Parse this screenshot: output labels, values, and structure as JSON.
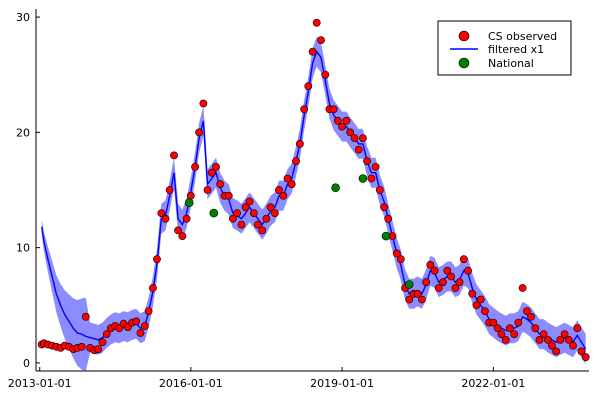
{
  "chart_data": {
    "type": "scatter",
    "title": "",
    "xlabel": "",
    "ylabel": "",
    "grid": false,
    "legend_position": "top-right",
    "xlim": [
      "2012-12-05",
      "2023-11-25"
    ],
    "ylim": [
      -0.7,
      30.7
    ],
    "x_ticks": [
      {
        "value": "2013-01-01",
        "label": "2013-01-01"
      },
      {
        "value": "2016-01-01",
        "label": "2016-01-01"
      },
      {
        "value": "2019-01-01",
        "label": "2019-01-01"
      },
      {
        "value": "2022-01-01",
        "label": "2022-01-01"
      }
    ],
    "y_ticks": [
      {
        "value": 0,
        "label": "0"
      },
      {
        "value": 10,
        "label": "10"
      },
      {
        "value": 20,
        "label": "20"
      },
      {
        "value": 30,
        "label": "30"
      }
    ],
    "series": [
      {
        "name": "CS observed",
        "kind": "scatter",
        "color": "#ff0000",
        "x": [
          "2013-01-15",
          "2013-02-01",
          "2013-03-01",
          "2013-04-01",
          "2013-05-01",
          "2013-06-01",
          "2013-07-01",
          "2013-08-01",
          "2013-09-01",
          "2013-10-01",
          "2013-11-01",
          "2013-12-01",
          "2014-01-01",
          "2014-02-01",
          "2014-03-01",
          "2014-04-01",
          "2014-05-01",
          "2014-06-01",
          "2014-07-01",
          "2014-08-01",
          "2014-09-01",
          "2014-10-01",
          "2014-11-01",
          "2014-12-01",
          "2015-01-01",
          "2015-02-01",
          "2015-03-01",
          "2015-04-01",
          "2015-05-01",
          "2015-06-01",
          "2015-07-01",
          "2015-08-01",
          "2015-09-01",
          "2015-10-01",
          "2015-11-01",
          "2015-12-01",
          "2016-01-01",
          "2016-02-01",
          "2016-03-01",
          "2016-04-01",
          "2016-05-01",
          "2016-06-01",
          "2016-07-01",
          "2016-08-01",
          "2016-09-01",
          "2016-10-01",
          "2016-11-01",
          "2016-12-01",
          "2017-01-01",
          "2017-02-01",
          "2017-03-01",
          "2017-04-01",
          "2017-05-01",
          "2017-06-01",
          "2017-07-01",
          "2017-08-01",
          "2017-09-01",
          "2017-10-01",
          "2017-11-01",
          "2017-12-01",
          "2018-01-01",
          "2018-02-01",
          "2018-03-01",
          "2018-04-01",
          "2018-05-01",
          "2018-06-01",
          "2018-07-01",
          "2018-08-01",
          "2018-09-01",
          "2018-10-01",
          "2018-11-01",
          "2018-12-01",
          "2019-01-01",
          "2019-02-01",
          "2019-03-01",
          "2019-04-01",
          "2019-05-01",
          "2019-06-01",
          "2019-07-01",
          "2019-08-01",
          "2019-09-01",
          "2019-10-01",
          "2019-11-01",
          "2019-12-01",
          "2020-01-01",
          "2020-02-01",
          "2020-03-01",
          "2020-04-01",
          "2020-05-01",
          "2020-06-01",
          "2020-07-01",
          "2020-08-01",
          "2020-09-01",
          "2020-10-01",
          "2020-11-01",
          "2020-12-01",
          "2021-01-01",
          "2021-02-01",
          "2021-03-01",
          "2021-04-01",
          "2021-05-01",
          "2021-06-01",
          "2021-07-01",
          "2021-08-01",
          "2021-09-01",
          "2021-10-01",
          "2021-11-01",
          "2021-12-01",
          "2022-01-01",
          "2022-02-01",
          "2022-03-01",
          "2022-04-01",
          "2022-05-01",
          "2022-06-01",
          "2022-07-01",
          "2022-08-01",
          "2022-09-01",
          "2022-10-01",
          "2022-11-01",
          "2022-12-01",
          "2023-01-01",
          "2023-02-01",
          "2023-03-01",
          "2023-04-01",
          "2023-05-01",
          "2023-06-01",
          "2023-07-01",
          "2023-08-01",
          "2023-09-01",
          "2023-10-01",
          "2023-11-01"
        ],
        "y": [
          1.6,
          1.7,
          1.6,
          1.5,
          1.4,
          1.3,
          1.5,
          1.4,
          1.2,
          1.3,
          1.4,
          4.0,
          1.3,
          1.1,
          1.2,
          1.8,
          2.5,
          3.0,
          3.2,
          3.0,
          3.4,
          3.1,
          3.5,
          3.6,
          2.6,
          3.2,
          4.5,
          6.5,
          9.0,
          13.0,
          12.5,
          15.0,
          18.0,
          11.5,
          11.0,
          12.5,
          14.5,
          17.0,
          20.0,
          22.5,
          15.0,
          16.5,
          17.0,
          15.5,
          14.5,
          14.5,
          12.5,
          13.0,
          12.0,
          13.5,
          14.0,
          13.0,
          12.0,
          11.5,
          12.5,
          13.5,
          13.0,
          15.0,
          14.5,
          16.0,
          15.5,
          17.5,
          19.0,
          22.0,
          24.0,
          27.0,
          29.5,
          28.0,
          25.0,
          22.0,
          22.0,
          21.0,
          20.5,
          21.0,
          20.0,
          19.5,
          18.5,
          19.5,
          17.5,
          16.0,
          17.0,
          15.0,
          13.5,
          12.5,
          11.0,
          9.5,
          9.0,
          6.5,
          5.5,
          6.0,
          6.0,
          5.5,
          7.0,
          8.5,
          8.0,
          6.5,
          7.0,
          8.0,
          7.5,
          6.5,
          7.0,
          9.0,
          8.0,
          6.0,
          5.0,
          5.5,
          4.5,
          3.5,
          3.5,
          3.0,
          2.5,
          2.0,
          3.0,
          2.5,
          3.5,
          6.5,
          4.5,
          4.0,
          3.0,
          2.0,
          2.5,
          2.0,
          1.5,
          1.0,
          2.0,
          2.5,
          2.0,
          1.5,
          3.0,
          1.0,
          0.5
        ]
      },
      {
        "name": "filtered x1",
        "kind": "line",
        "color": "#0000ff",
        "x": [
          "2013-01-15",
          "2013-02-01",
          "2013-03-01",
          "2013-04-01",
          "2013-05-01",
          "2013-06-01",
          "2013-07-01",
          "2013-08-01",
          "2013-09-01",
          "2013-10-01",
          "2013-11-01",
          "2013-12-01",
          "2014-01-01",
          "2014-02-01",
          "2014-03-01",
          "2014-04-01",
          "2014-05-01",
          "2014-06-01",
          "2014-07-01",
          "2014-08-01",
          "2014-09-01",
          "2014-10-01",
          "2014-11-01",
          "2014-12-01",
          "2015-01-01",
          "2015-02-01",
          "2015-03-01",
          "2015-04-01",
          "2015-05-01",
          "2015-06-01",
          "2015-07-01",
          "2015-08-01",
          "2015-09-01",
          "2015-10-01",
          "2015-11-01",
          "2015-12-01",
          "2016-01-01",
          "2016-02-01",
          "2016-03-01",
          "2016-04-01",
          "2016-05-01",
          "2016-06-01",
          "2016-07-01",
          "2016-08-01",
          "2016-09-01",
          "2016-10-01",
          "2016-11-01",
          "2016-12-01",
          "2017-01-01",
          "2017-02-01",
          "2017-03-01",
          "2017-04-01",
          "2017-05-01",
          "2017-06-01",
          "2017-07-01",
          "2017-08-01",
          "2017-09-01",
          "2017-10-01",
          "2017-11-01",
          "2017-12-01",
          "2018-01-01",
          "2018-02-01",
          "2018-03-01",
          "2018-04-01",
          "2018-05-01",
          "2018-06-01",
          "2018-07-01",
          "2018-08-01",
          "2018-09-01",
          "2018-10-01",
          "2018-11-01",
          "2018-12-01",
          "2019-01-01",
          "2019-02-01",
          "2019-03-01",
          "2019-04-01",
          "2019-05-01",
          "2019-06-01",
          "2019-07-01",
          "2019-08-01",
          "2019-09-01",
          "2019-10-01",
          "2019-11-01",
          "2019-12-01",
          "2020-01-01",
          "2020-02-01",
          "2020-03-01",
          "2020-04-01",
          "2020-05-01",
          "2020-06-01",
          "2020-07-01",
          "2020-08-01",
          "2020-09-01",
          "2020-10-01",
          "2020-11-01",
          "2020-12-01",
          "2021-01-01",
          "2021-02-01",
          "2021-03-01",
          "2021-04-01",
          "2021-05-01",
          "2021-06-01",
          "2021-07-01",
          "2021-08-01",
          "2021-09-01",
          "2021-10-01",
          "2021-11-01",
          "2021-12-01",
          "2022-01-01",
          "2022-02-01",
          "2022-03-01",
          "2022-04-01",
          "2022-05-01",
          "2022-06-01",
          "2022-07-01",
          "2022-08-01",
          "2022-09-01",
          "2022-10-01",
          "2022-11-01",
          "2022-12-01",
          "2023-01-01",
          "2023-02-01",
          "2023-03-01",
          "2023-04-01",
          "2023-05-01",
          "2023-06-01",
          "2023-07-01",
          "2023-08-01",
          "2023-09-01",
          "2023-10-01",
          "2023-11-01"
        ],
        "y": [
          11.8,
          10.5,
          9.0,
          7.5,
          6.0,
          5.0,
          4.2,
          3.6,
          3.0,
          2.6,
          2.5,
          2.3,
          2.2,
          2.1,
          2.0,
          2.2,
          2.6,
          2.9,
          3.1,
          3.0,
          3.2,
          3.1,
          3.3,
          3.4,
          3.0,
          3.2,
          4.4,
          6.2,
          8.6,
          12.5,
          12.8,
          14.5,
          16.5,
          12.5,
          12.0,
          13.0,
          14.8,
          17.0,
          19.5,
          21.0,
          15.5,
          16.0,
          16.5,
          15.2,
          14.5,
          14.2,
          13.0,
          12.8,
          12.5,
          13.0,
          13.5,
          13.0,
          12.5,
          12.0,
          12.5,
          13.2,
          13.5,
          14.5,
          14.5,
          15.5,
          16.0,
          17.5,
          19.0,
          21.5,
          23.5,
          26.0,
          27.0,
          26.5,
          24.5,
          22.5,
          21.5,
          21.0,
          20.5,
          20.5,
          20.0,
          19.5,
          19.0,
          19.0,
          17.5,
          16.5,
          16.5,
          15.0,
          14.0,
          12.5,
          11.0,
          9.5,
          8.5,
          6.8,
          6.0,
          6.0,
          6.2,
          6.0,
          6.8,
          8.0,
          7.8,
          7.0,
          7.2,
          7.5,
          7.5,
          7.0,
          7.2,
          8.0,
          7.8,
          6.5,
          5.5,
          5.0,
          4.5,
          3.8,
          3.5,
          3.2,
          3.0,
          2.8,
          3.0,
          3.0,
          3.2,
          4.0,
          3.8,
          3.5,
          3.0,
          2.5,
          2.5,
          2.2,
          2.0,
          1.8,
          2.0,
          2.2,
          2.0,
          1.8,
          2.4,
          1.8,
          1.2
        ]
      },
      {
        "name": "National",
        "kind": "scatter",
        "color": "#008000",
        "x": [
          "2015-12-20",
          "2016-06-15",
          "2018-11-15",
          "2019-06-01",
          "2019-11-15",
          "2020-05-01"
        ],
        "y": [
          13.9,
          13.0,
          15.2,
          16.0,
          11.0,
          6.8
        ]
      }
    ]
  }
}
